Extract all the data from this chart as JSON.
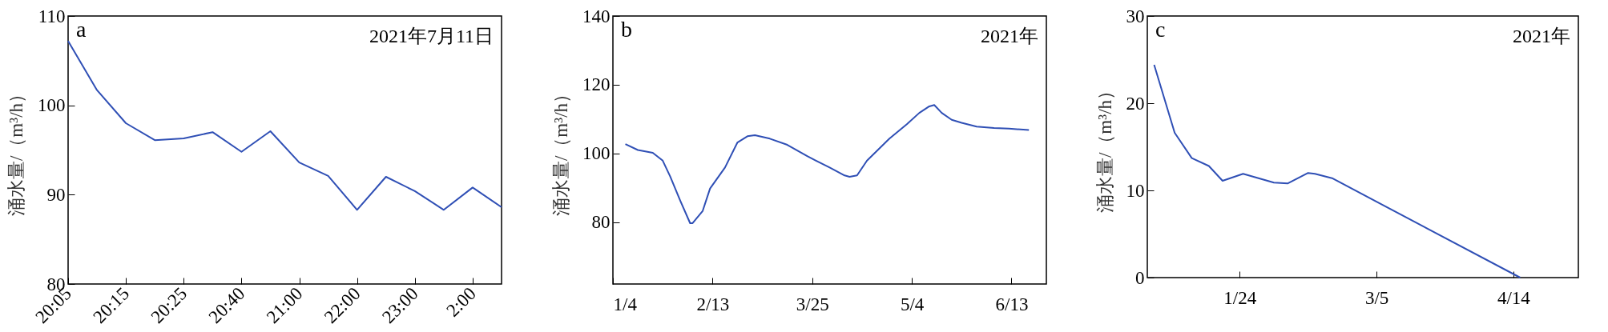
{
  "chart_data": [
    {
      "type": "line",
      "ylabel": "涌水量/（m³/h）",
      "annotations": [
        "a",
        "2021年7月11日"
      ],
      "categories": [
        "20:05",
        null,
        "20:15",
        null,
        "20:25",
        null,
        "20:40",
        null,
        "21:00",
        null,
        "22:00",
        null,
        "23:00",
        null,
        "2:00",
        null
      ],
      "series": [
        {
          "color": "#2f4fb5",
          "values": [
            107.2,
            101.7,
            98.0,
            96.1,
            96.3,
            97.0,
            94.8,
            97.1,
            93.6,
            92.1,
            88.3,
            92.0,
            90.4,
            88.3,
            90.8,
            88.6
          ]
        }
      ],
      "ylim": [
        80,
        110
      ],
      "yticks": [
        80,
        90,
        100,
        110
      ]
    },
    {
      "type": "line",
      "ylabel": "涌水量/（m³/h）",
      "annotations": [
        "b",
        "2021年"
      ],
      "x": [
        "2021-01-09",
        "2021-01-14",
        "2021-01-20",
        "2021-01-24",
        "2021-01-27",
        "2021-01-31",
        "2021-02-04",
        "2021-02-05",
        "2021-02-09",
        "2021-02-12",
        "2021-02-18",
        "2021-02-23",
        "2021-02-27",
        "2021-03-02",
        "2021-03-08",
        "2021-03-15",
        "2021-03-23",
        "2021-04-01",
        "2021-04-07",
        "2021-04-09",
        "2021-04-12",
        "2021-04-16",
        "2021-04-25",
        "2021-05-02",
        "2021-05-07",
        "2021-05-11",
        "2021-05-13",
        "2021-05-16",
        "2021-05-20",
        "2021-05-24",
        "2021-05-30",
        "2021-06-06",
        "2021-06-12",
        "2021-06-20"
      ],
      "series": [
        {
          "color": "#2f4fb5",
          "values": [
            102.7,
            101.0,
            100.2,
            97.9,
            93.3,
            86.3,
            79.7,
            79.7,
            83.2,
            89.8,
            95.9,
            103.2,
            105.0,
            105.3,
            104.3,
            102.5,
            99.2,
            95.9,
            93.6,
            93.2,
            93.6,
            97.9,
            104.3,
            108.5,
            111.8,
            113.7,
            114.1,
            111.8,
            109.8,
            108.9,
            107.8,
            107.4,
            107.2,
            106.8
          ]
        }
      ],
      "xlim": [
        "2021-01-04",
        "2021-06-27"
      ],
      "xticks": [
        {
          "value": "2021-01-04",
          "label": "1/4"
        },
        {
          "value": "2021-02-13",
          "label": "2/13"
        },
        {
          "value": "2021-03-25",
          "label": "3/25"
        },
        {
          "value": "2021-05-04",
          "label": "5/4"
        },
        {
          "value": "2021-06-13",
          "label": "6/13"
        }
      ],
      "ylim": [
        62,
        140
      ],
      "yticks": [
        80,
        100,
        120,
        140
      ]
    },
    {
      "type": "line",
      "ylabel": "涌水量/（m³/h）",
      "annotations": [
        "c",
        "2021年"
      ],
      "x": [
        "2020-12-30",
        "2021-01-05",
        "2021-01-10",
        "2021-01-15",
        "2021-01-19",
        "2021-01-25",
        "2021-02-03",
        "2021-02-07",
        "2021-02-13",
        "2021-02-15",
        "2021-02-20",
        "2021-04-16"
      ],
      "series": [
        {
          "color": "#2f4fb5",
          "values": [
            24.4,
            16.6,
            13.7,
            12.8,
            11.1,
            11.9,
            10.9,
            10.8,
            12.0,
            11.9,
            11.4,
            0.0
          ]
        }
      ],
      "xlim": [
        "2020-12-28",
        "2021-05-03"
      ],
      "xticks": [
        {
          "value": "2021-01-24",
          "label": "1/24"
        },
        {
          "value": "2021-03-05",
          "label": "3/5"
        },
        {
          "value": "2021-04-14",
          "label": "4/14"
        }
      ],
      "ylim": [
        0,
        30
      ],
      "yticks": [
        0,
        10,
        20,
        30
      ]
    }
  ]
}
